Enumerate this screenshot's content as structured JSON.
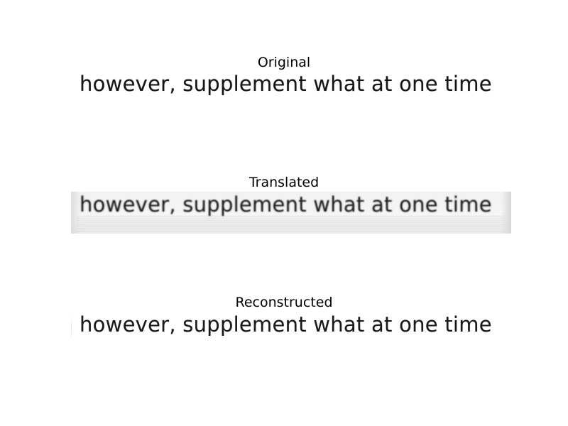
{
  "panels": {
    "original": {
      "title": "Original",
      "text": "however, supplement what at one time"
    },
    "translated": {
      "title": "Translated",
      "text": "however, supplement what at one time"
    },
    "reconstructed": {
      "title": "Reconstructed",
      "text": "however, supplement what at one time"
    }
  }
}
